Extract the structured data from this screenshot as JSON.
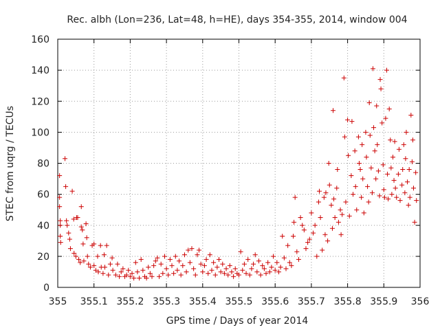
{
  "chart_data": {
    "type": "scatter",
    "title": "Rec. albh (Lon=236, Lat=48, h=HE), days 354-355, 2014, window 004",
    "xlabel": "GPS time / Days of year 2014",
    "ylabel": "STEC from uqrg / TECUs",
    "xlim": [
      355,
      356
    ],
    "ylim": [
      0,
      160
    ],
    "xticks": [
      "355",
      "355.1",
      "355.2",
      "355.3",
      "355.4",
      "355.5",
      "355.6",
      "355.7",
      "355.8",
      "355.9",
      "356"
    ],
    "yticks": [
      "0",
      "20",
      "40",
      "60",
      "80",
      "100",
      "120",
      "140",
      "160"
    ],
    "grid": true,
    "marker": "+",
    "color": "#cc0000",
    "series": [
      {
        "name": "",
        "points": [
          [
            355.005,
            72
          ],
          [
            355.005,
            58
          ],
          [
            355.005,
            52
          ],
          [
            355.007,
            43
          ],
          [
            355.007,
            40
          ],
          [
            355.007,
            33
          ],
          [
            355.008,
            29
          ],
          [
            355.02,
            83
          ],
          [
            355.022,
            65
          ],
          [
            355.024,
            43
          ],
          [
            355.026,
            40
          ],
          [
            355.03,
            35
          ],
          [
            355.033,
            31
          ],
          [
            355.035,
            25
          ],
          [
            355.04,
            62
          ],
          [
            355.044,
            44
          ],
          [
            355.045,
            22
          ],
          [
            355.05,
            20
          ],
          [
            355.052,
            45
          ],
          [
            355.055,
            45
          ],
          [
            355.058,
            18
          ],
          [
            355.062,
            16
          ],
          [
            355.065,
            52
          ],
          [
            355.065,
            39
          ],
          [
            355.068,
            37
          ],
          [
            355.07,
            28
          ],
          [
            355.072,
            17
          ],
          [
            355.078,
            41
          ],
          [
            355.08,
            32
          ],
          [
            355.082,
            20
          ],
          [
            355.085,
            15
          ],
          [
            355.09,
            13
          ],
          [
            355.095,
            27
          ],
          [
            355.1,
            28
          ],
          [
            355.1,
            14
          ],
          [
            355.105,
            11
          ],
          [
            355.11,
            20
          ],
          [
            355.112,
            10
          ],
          [
            355.118,
            27
          ],
          [
            355.12,
            13
          ],
          [
            355.125,
            9
          ],
          [
            355.128,
            21
          ],
          [
            355.13,
            13
          ],
          [
            355.135,
            27
          ],
          [
            355.14,
            8
          ],
          [
            355.145,
            15
          ],
          [
            355.15,
            19
          ],
          [
            355.152,
            11
          ],
          [
            355.16,
            8
          ],
          [
            355.165,
            15
          ],
          [
            355.17,
            7
          ],
          [
            355.175,
            10
          ],
          [
            355.18,
            12
          ],
          [
            355.185,
            7
          ],
          [
            355.19,
            8
          ],
          [
            355.195,
            11
          ],
          [
            355.2,
            7
          ],
          [
            355.205,
            9
          ],
          [
            355.21,
            6
          ],
          [
            355.215,
            16
          ],
          [
            355.22,
            10
          ],
          [
            355.225,
            6
          ],
          [
            355.23,
            18
          ],
          [
            355.235,
            11
          ],
          [
            355.24,
            7
          ],
          [
            355.245,
            6
          ],
          [
            355.25,
            13
          ],
          [
            355.255,
            9
          ],
          [
            355.26,
            7
          ],
          [
            355.265,
            14
          ],
          [
            355.27,
            17
          ],
          [
            355.275,
            19
          ],
          [
            355.28,
            7
          ],
          [
            355.285,
            15
          ],
          [
            355.29,
            9
          ],
          [
            355.295,
            20
          ],
          [
            355.3,
            12
          ],
          [
            355.305,
            8
          ],
          [
            355.31,
            18
          ],
          [
            355.315,
            14
          ],
          [
            355.32,
            9
          ],
          [
            355.325,
            20
          ],
          [
            355.33,
            11
          ],
          [
            355.335,
            17
          ],
          [
            355.34,
            8
          ],
          [
            355.345,
            14
          ],
          [
            355.35,
            21
          ],
          [
            355.355,
            10
          ],
          [
            355.36,
            24
          ],
          [
            355.365,
            16
          ],
          [
            355.37,
            25
          ],
          [
            355.375,
            12
          ],
          [
            355.38,
            8
          ],
          [
            355.385,
            21
          ],
          [
            355.39,
            24
          ],
          [
            355.395,
            15
          ],
          [
            355.4,
            10
          ],
          [
            355.405,
            14
          ],
          [
            355.41,
            18
          ],
          [
            355.415,
            9
          ],
          [
            355.42,
            21
          ],
          [
            355.425,
            11
          ],
          [
            355.43,
            16
          ],
          [
            355.435,
            8
          ],
          [
            355.44,
            13
          ],
          [
            355.445,
            18
          ],
          [
            355.45,
            10
          ],
          [
            355.455,
            15
          ],
          [
            355.46,
            9
          ],
          [
            355.465,
            12
          ],
          [
            355.47,
            8
          ],
          [
            355.475,
            14
          ],
          [
            355.48,
            10
          ],
          [
            355.485,
            7
          ],
          [
            355.49,
            12
          ],
          [
            355.495,
            9
          ],
          [
            355.5,
            8
          ],
          [
            355.505,
            23
          ],
          [
            355.51,
            11
          ],
          [
            355.515,
            15
          ],
          [
            355.52,
            9
          ],
          [
            355.525,
            18
          ],
          [
            355.53,
            8
          ],
          [
            355.535,
            12
          ],
          [
            355.54,
            15
          ],
          [
            355.545,
            21
          ],
          [
            355.55,
            10
          ],
          [
            355.555,
            17
          ],
          [
            355.56,
            8
          ],
          [
            355.565,
            14
          ],
          [
            355.57,
            12
          ],
          [
            355.575,
            9
          ],
          [
            355.58,
            16
          ],
          [
            355.585,
            10
          ],
          [
            355.59,
            13
          ],
          [
            355.595,
            20
          ],
          [
            355.6,
            11
          ],
          [
            355.605,
            16
          ],
          [
            355.61,
            10
          ],
          [
            355.615,
            13
          ],
          [
            355.62,
            33
          ],
          [
            355.625,
            19
          ],
          [
            355.63,
            12
          ],
          [
            355.635,
            27
          ],
          [
            355.64,
            16
          ],
          [
            355.645,
            14
          ],
          [
            355.65,
            33
          ],
          [
            355.652,
            42
          ],
          [
            355.655,
            58
          ],
          [
            355.66,
            23
          ],
          [
            355.665,
            18
          ],
          [
            355.67,
            45
          ],
          [
            355.675,
            40
          ],
          [
            355.68,
            37
          ],
          [
            355.685,
            25
          ],
          [
            355.69,
            29
          ],
          [
            355.695,
            31
          ],
          [
            355.7,
            48
          ],
          [
            355.705,
            35
          ],
          [
            355.71,
            40
          ],
          [
            355.715,
            20
          ],
          [
            355.72,
            55
          ],
          [
            355.722,
            62
          ],
          [
            355.725,
            45
          ],
          [
            355.73,
            24
          ],
          [
            355.735,
            58
          ],
          [
            355.738,
            34
          ],
          [
            355.74,
            61
          ],
          [
            355.745,
            30
          ],
          [
            355.748,
            80
          ],
          [
            355.75,
            66
          ],
          [
            355.755,
            53
          ],
          [
            355.758,
            38
          ],
          [
            355.76,
            114
          ],
          [
            355.762,
            57
          ],
          [
            355.765,
            45
          ],
          [
            355.77,
            64
          ],
          [
            355.772,
            76
          ],
          [
            355.775,
            42
          ],
          [
            355.78,
            50
          ],
          [
            355.782,
            34
          ],
          [
            355.785,
            47
          ],
          [
            355.79,
            135
          ],
          [
            355.792,
            97
          ],
          [
            355.795,
            55
          ],
          [
            355.8,
            108
          ],
          [
            355.802,
            85
          ],
          [
            355.805,
            46
          ],
          [
            355.81,
            72
          ],
          [
            355.812,
            107
          ],
          [
            355.815,
            60
          ],
          [
            355.82,
            88
          ],
          [
            355.822,
            65
          ],
          [
            355.825,
            50
          ],
          [
            355.83,
            97
          ],
          [
            355.832,
            80
          ],
          [
            355.835,
            76
          ],
          [
            355.838,
            58
          ],
          [
            355.84,
            92
          ],
          [
            355.842,
            70
          ],
          [
            355.845,
            48
          ],
          [
            355.85,
            100
          ],
          [
            355.852,
            84
          ],
          [
            355.855,
            65
          ],
          [
            355.858,
            55
          ],
          [
            355.86,
            119
          ],
          [
            355.862,
            98
          ],
          [
            355.865,
            77
          ],
          [
            355.868,
            61
          ],
          [
            355.87,
            141
          ],
          [
            355.872,
            103
          ],
          [
            355.875,
            88
          ],
          [
            355.878,
            70
          ],
          [
            355.88,
            117
          ],
          [
            355.882,
            92
          ],
          [
            355.885,
            75
          ],
          [
            355.888,
            59
          ],
          [
            355.89,
            134
          ],
          [
            355.892,
            128
          ],
          [
            355.895,
            106
          ],
          [
            355.898,
            79
          ],
          [
            355.9,
            63
          ],
          [
            355.902,
            58
          ],
          [
            355.905,
            109
          ],
          [
            355.908,
            140
          ],
          [
            355.91,
            73
          ],
          [
            355.912,
            57
          ],
          [
            355.915,
            115
          ],
          [
            355.918,
            95
          ],
          [
            355.92,
            77
          ],
          [
            355.922,
            60
          ],
          [
            355.925,
            84
          ],
          [
            355.928,
            69
          ],
          [
            355.93,
            94
          ],
          [
            355.932,
            64
          ],
          [
            355.935,
            58
          ],
          [
            355.94,
            73
          ],
          [
            355.942,
            89
          ],
          [
            355.945,
            56
          ],
          [
            355.95,
            66
          ],
          [
            355.952,
            76
          ],
          [
            355.955,
            92
          ],
          [
            355.958,
            61
          ],
          [
            355.96,
            83
          ],
          [
            355.962,
            100
          ],
          [
            355.965,
            68
          ],
          [
            355.968,
            53
          ],
          [
            355.97,
            76
          ],
          [
            355.972,
            58
          ],
          [
            355.975,
            111
          ],
          [
            355.978,
            81
          ],
          [
            355.98,
            95
          ],
          [
            355.982,
            64
          ],
          [
            355.985,
            42
          ],
          [
            355.988,
            74
          ],
          [
            355.99,
            56
          ]
        ]
      }
    ]
  }
}
